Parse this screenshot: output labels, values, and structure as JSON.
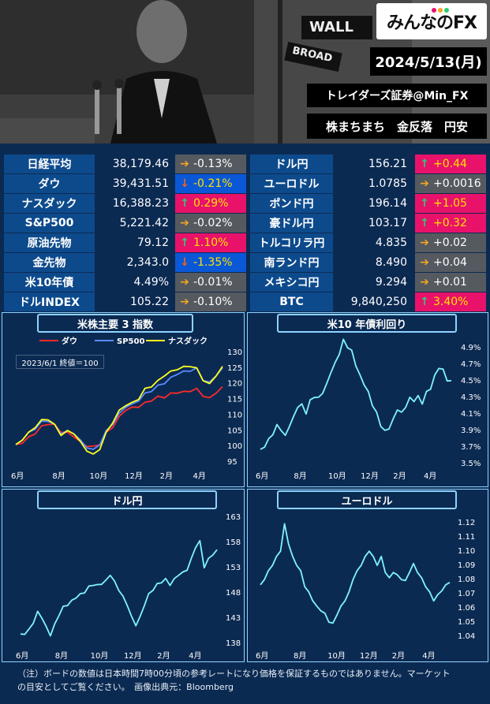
{
  "header": {
    "brand": "みんなのFX",
    "date": "2024/5/13(月)",
    "company": "トレイダーズ証券@Min_FX",
    "headline": "株まちまち　金反落　円安",
    "sign_wall": "WALL",
    "sign_broad": "BROAD"
  },
  "colors": {
    "background": "#0b2a52",
    "label_bg": "#0d4a8c",
    "up_bg": "#e8126a",
    "down_bg": "#0a58d6",
    "flat_bg": "#555a60",
    "cyan_line": "#7ff3ff"
  },
  "rates": {
    "left": [
      {
        "label": "日経平均",
        "value": "38,179.46",
        "change": "-0.13%",
        "dir": "flat"
      },
      {
        "label": "ダウ",
        "value": "39,431.51",
        "change": "-0.21%",
        "dir": "down"
      },
      {
        "label": "ナスダック",
        "value": "16,388.23",
        "change": "0.29%",
        "dir": "up"
      },
      {
        "label": "S&P500",
        "value": "5,221.42",
        "change": "-0.02%",
        "dir": "flat"
      },
      {
        "label": "原油先物",
        "value": "79.12",
        "change": "1.10%",
        "dir": "up"
      },
      {
        "label": "金先物",
        "value": "2,343.0",
        "change": "-1.35%",
        "dir": "down"
      },
      {
        "label": "米10年債",
        "value": "4.49%",
        "change": "-0.01%",
        "dir": "flat"
      },
      {
        "label": "ドルINDEX",
        "value": "105.22",
        "change": "-0.10%",
        "dir": "flat"
      }
    ],
    "right": [
      {
        "label": "ドル円",
        "value": "156.21",
        "change": "+0.44",
        "dir": "up"
      },
      {
        "label": "ユーロドル",
        "value": "1.0785",
        "change": "+0.0016",
        "dir": "flat"
      },
      {
        "label": "ポンド円",
        "value": "196.14",
        "change": "+1.05",
        "dir": "up"
      },
      {
        "label": "豪ドル円",
        "value": "103.17",
        "change": "+0.32",
        "dir": "up"
      },
      {
        "label": "トルコリラ円",
        "value": "4.835",
        "change": "+0.02",
        "dir": "flat"
      },
      {
        "label": "南ランド円",
        "value": "8.490",
        "change": "+0.04",
        "dir": "flat"
      },
      {
        "label": "メキシコ円",
        "value": "9.294",
        "change": "+0.01",
        "dir": "flat"
      },
      {
        "label": "BTC",
        "value": "9,840,250",
        "change": "3.40%",
        "dir": "up"
      }
    ]
  },
  "chart_data": [
    {
      "type": "line",
      "title": "米株主要 3 指数",
      "note": "2023/6/1 終値＝100",
      "x_ticks": [
        "6月",
        "8月",
        "10月",
        "12月",
        "2月",
        "4月"
      ],
      "y_ticks": [
        95,
        100,
        105,
        110,
        115,
        120,
        125,
        130
      ],
      "ylim": [
        95,
        130
      ],
      "legend": [
        "ダウ",
        "SP500",
        "ナスダック"
      ],
      "series": [
        {
          "name": "ダウ",
          "color": "#ff2a2a",
          "values": [
            100,
            101,
            102.5,
            104,
            106,
            107,
            106.5,
            104.5,
            104,
            103,
            101,
            100,
            99.5,
            100.5,
            104,
            106,
            109,
            111.5,
            112,
            112.5,
            113.5,
            114.5,
            115.5,
            115.5,
            116.5,
            117,
            117,
            117.5,
            118,
            116,
            115,
            117,
            118.5
          ]
        },
        {
          "name": "SP500",
          "color": "#5a8cff",
          "values": [
            100,
            102,
            104,
            105.5,
            107.5,
            108,
            106.5,
            104,
            104.5,
            104,
            101.5,
            99.5,
            98.5,
            100.5,
            104.5,
            107,
            110,
            112.5,
            113,
            114.5,
            116.5,
            117.5,
            119,
            120,
            121.5,
            123,
            123.5,
            124,
            124.5,
            121,
            120,
            122.5,
            124.5
          ]
        },
        {
          "name": "ナスダック",
          "color": "#ffff20",
          "values": [
            100,
            102,
            104,
            106,
            108,
            108.5,
            106.5,
            103.5,
            104.5,
            104,
            101,
            98.5,
            97,
            99,
            104,
            107.5,
            111,
            113,
            113.5,
            115,
            118,
            119,
            120.5,
            122.5,
            123.5,
            124.5,
            125,
            125.5,
            124.5,
            121,
            119.5,
            122.5,
            125
          ]
        }
      ]
    },
    {
      "type": "line",
      "title": "米10 年債利回り",
      "x_ticks": [
        "6月",
        "8月",
        "10月",
        "12月",
        "2月",
        "4月"
      ],
      "y_ticks": [
        "4.9%",
        "4.7%",
        "4.5%",
        "4.3%",
        "4.1%",
        "3.9%",
        "3.7%",
        "3.5%"
      ],
      "ylim": [
        3.5,
        4.9
      ],
      "series": [
        {
          "name": "",
          "color": "#7ff3ff",
          "values": [
            3.65,
            3.7,
            3.78,
            3.85,
            3.95,
            3.9,
            3.82,
            3.95,
            4.05,
            4.18,
            4.2,
            4.1,
            4.25,
            4.3,
            4.28,
            4.35,
            4.45,
            4.6,
            4.7,
            4.82,
            4.98,
            4.9,
            4.85,
            4.68,
            4.55,
            4.45,
            4.35,
            4.2,
            4.1,
            3.95,
            3.88,
            3.92,
            4.02,
            4.15,
            4.1,
            4.18,
            4.28,
            4.25,
            4.3,
            4.22,
            4.35,
            4.4,
            4.55,
            4.65,
            4.62,
            4.5,
            4.48
          ]
        }
      ]
    },
    {
      "type": "line",
      "title": "ドル円",
      "x_ticks": [
        "6月",
        "8月",
        "10月",
        "12月",
        "2月",
        "4月"
      ],
      "y_ticks": [
        163,
        158,
        153,
        148,
        143,
        138
      ],
      "ylim": [
        138,
        163
      ],
      "series": [
        {
          "name": "",
          "color": "#7ff3ff",
          "values": [
            139.5,
            139.8,
            140.5,
            142,
            144,
            143,
            141,
            139.5,
            141.5,
            143.5,
            145,
            145.5,
            146.2,
            147,
            147.5,
            148,
            149,
            149.5,
            149.3,
            149.7,
            150.2,
            151.5,
            150,
            148.5,
            147,
            145.5,
            143,
            141.5,
            143,
            145.5,
            147.5,
            148.5,
            149.5,
            150,
            150.5,
            149.5,
            150.5,
            151.5,
            151.8,
            152.5,
            154.5,
            157,
            158,
            153,
            154.5,
            155.5,
            156.2
          ]
        }
      ]
    },
    {
      "type": "line",
      "title": "ユーロドル",
      "x_ticks": [
        "6月",
        "8月",
        "10月",
        "12月",
        "2月",
        "4月"
      ],
      "y_ticks": [
        1.12,
        1.11,
        1.1,
        1.09,
        1.08,
        1.07,
        1.06,
        1.05,
        1.04
      ],
      "y_tick_labels": [
        "1.12",
        "1.11",
        "1.10",
        "1.09",
        "1.08",
        "1.07",
        "1.06",
        "1.05",
        "1.04"
      ],
      "ylim": [
        1.035,
        1.125
      ],
      "series": [
        {
          "name": "",
          "color": "#7ff3ff",
          "values": [
            1.075,
            1.08,
            1.085,
            1.09,
            1.095,
            1.1,
            1.118,
            1.105,
            1.095,
            1.09,
            1.085,
            1.075,
            1.07,
            1.065,
            1.06,
            1.058,
            1.055,
            1.05,
            1.048,
            1.055,
            1.06,
            1.065,
            1.07,
            1.08,
            1.085,
            1.09,
            1.095,
            1.1,
            1.095,
            1.09,
            1.095,
            1.085,
            1.08,
            1.085,
            1.082,
            1.08,
            1.078,
            1.085,
            1.09,
            1.085,
            1.08,
            1.075,
            1.07,
            1.065,
            1.068,
            1.072,
            1.075,
            1.078
          ]
        }
      ]
    }
  ],
  "footer": {
    "line1": "（注）ボードの数値は日本時間7時00分頃の参考レートになり価格を保証するものではありません。マーケット",
    "line2": "の目安としてご覧ください。　画像出典元：Bloomberg"
  }
}
